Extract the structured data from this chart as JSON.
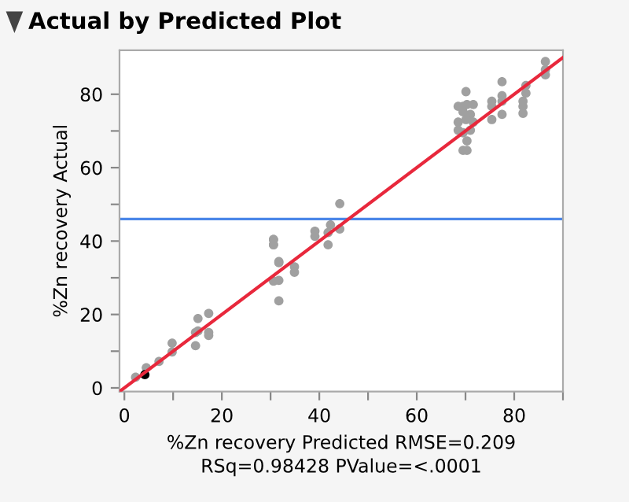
{
  "chart_data": {
    "type": "scatter",
    "title": "Actual by Predicted Plot",
    "xlabel": "%Zn recovery Predicted RMSE=0.209\nRSq=0.98428 PValue=<.0001",
    "ylabel": "%Zn recovery Actual",
    "xlim": [
      -1,
      90
    ],
    "ylim": [
      -1,
      92
    ],
    "xticks": [
      0,
      {
        "value": 10,
        "label": null
      },
      20,
      {
        "value": 30,
        "label": null
      },
      40,
      {
        "value": 50,
        "label": null
      },
      60,
      {
        "value": 70,
        "label": null
      },
      80,
      {
        "value": 90,
        "label": null
      }
    ],
    "yticks": [
      0,
      {
        "value": 10,
        "label": null
      },
      20,
      {
        "value": 30,
        "label": null
      },
      40,
      {
        "value": 50,
        "label": null
      },
      60,
      {
        "value": 70,
        "label": null
      },
      80
    ],
    "grid": false,
    "legend": false,
    "ref_lines": [
      {
        "axis": "y",
        "value": 46,
        "color": "#4a86e8"
      }
    ],
    "series": [
      {
        "marker": "circle",
        "color": "#a0a0a0",
        "x": [
          70.1,
          68.5,
          69.5,
          70.3,
          71.6,
          69.5,
          71.0,
          68.5,
          70.1,
          71.6,
          68.5,
          69.5,
          71.0,
          70.3,
          69.5,
          70.3,
          75.4,
          75.4,
          75.4,
          77.5,
          77.5,
          77.5,
          77.5,
          81.8,
          81.8,
          81.8,
          82.4,
          82.4,
          86.4,
          86.4,
          86.4,
          44.2,
          42.3,
          41.8,
          39.1,
          39.1,
          41.8,
          44.2,
          30.6,
          30.6,
          31.7,
          30.6,
          30.6,
          31.7,
          34.9,
          34.9,
          30.6,
          31.7,
          31.7,
          15.1,
          17.3,
          14.6,
          15.1,
          14.6,
          17.3,
          17.3,
          9.8,
          9.8,
          7.1,
          4.5,
          2.3
        ],
        "values": [
          80.7,
          76.7,
          76.7,
          77.2,
          77.2,
          75.2,
          74.5,
          72.4,
          73.1,
          72.4,
          70.2,
          69.5,
          70.2,
          67.3,
          64.7,
          64.7,
          78.1,
          76.7,
          73.1,
          83.4,
          79.6,
          78.1,
          74.5,
          78.1,
          76.7,
          74.8,
          82.4,
          80.3,
          88.9,
          86.7,
          85.3,
          50.2,
          44.4,
          42.3,
          42.7,
          41.3,
          39.0,
          43.3,
          40.4,
          39.0,
          34.4,
          40.4,
          39.0,
          34.1,
          33.0,
          31.5,
          29.1,
          29.3,
          23.7,
          18.9,
          20.3,
          15.1,
          15.5,
          11.5,
          14.3,
          15.1,
          12.2,
          9.8,
          7.2,
          5.5,
          2.9
        ]
      },
      {
        "marker": "circle",
        "color": "#000000",
        "x": [
          4.2
        ],
        "values": [
          3.6
        ]
      },
      {
        "type": "line",
        "color": "#e8283c",
        "x": [
          -1,
          90
        ],
        "values": [
          -1,
          90
        ]
      }
    ]
  }
}
